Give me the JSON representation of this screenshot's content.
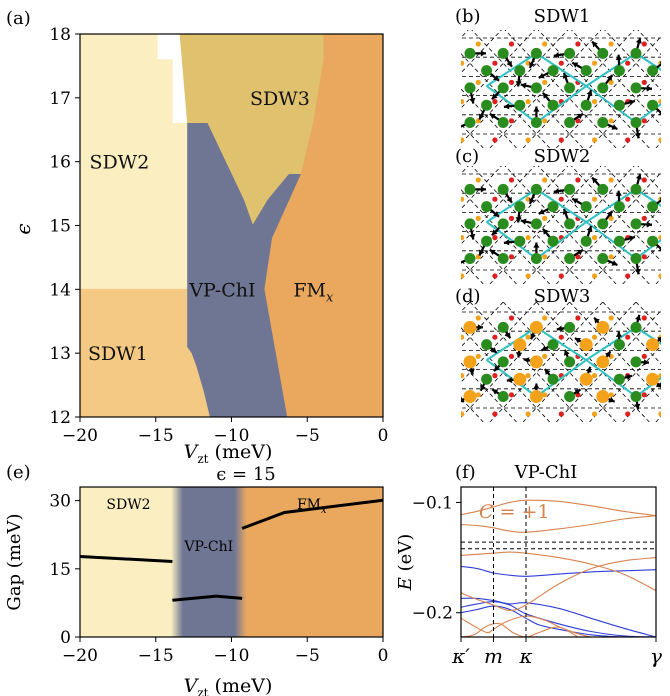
{
  "chart_data": [
    {
      "panel": "(a)",
      "type": "heatmap",
      "xlabel": "V_zt (meV)",
      "ylabel": "ϵ",
      "xlim": [
        -20,
        0
      ],
      "ylim": [
        12,
        18
      ],
      "xticks": [
        "−20",
        "−15",
        "−10",
        "−5",
        "0"
      ],
      "yticks": [
        "12",
        "13",
        "14",
        "15",
        "16",
        "17",
        "18"
      ],
      "regions": [
        {
          "name": "SDW2",
          "color": "#fbefc2",
          "polygon": [
            [
              -20,
              14
            ],
            [
              -20,
              18
            ],
            [
              -14.9,
              18
            ],
            [
              -14.9,
              17.6
            ],
            [
              -13.9,
              17.6
            ],
            [
              -13.9,
              16.6
            ],
            [
              -12.9,
              16.6
            ],
            [
              -12.9,
              14
            ],
            [
              -20,
              14
            ]
          ]
        },
        {
          "name": "SDW1",
          "color": "#f4c983",
          "polygon": [
            [
              -20,
              12
            ],
            [
              -20,
              14
            ],
            [
              -12.9,
              14
            ],
            [
              -12.9,
              13.1
            ],
            [
              -12.6,
              13.0
            ],
            [
              -12.3,
              12.8
            ],
            [
              -11.8,
              12.4
            ],
            [
              -11.4,
              12
            ],
            [
              -20,
              12
            ]
          ]
        },
        {
          "name": "SDW3",
          "color": "#e0c26e",
          "polygon": [
            [
              -13.4,
              18
            ],
            [
              -3.9,
              18
            ],
            [
              -3.9,
              17.6
            ],
            [
              -4.6,
              16.6
            ],
            [
              -5.4,
              15.8
            ],
            [
              -6.2,
              15.8
            ],
            [
              -7.6,
              15.4
            ],
            [
              -8.6,
              15.0
            ],
            [
              -9.2,
              15.4
            ],
            [
              -10.6,
              16.1
            ],
            [
              -11.6,
              16.6
            ],
            [
              -12.9,
              16.6
            ],
            [
              -13.4,
              18
            ]
          ]
        },
        {
          "name": "VP-ChI",
          "color": "#6f7693",
          "polygon": [
            [
              -12.9,
              16.6
            ],
            [
              -11.6,
              16.6
            ],
            [
              -10.6,
              16.1
            ],
            [
              -9.2,
              15.4
            ],
            [
              -8.6,
              15.0
            ],
            [
              -7.6,
              15.4
            ],
            [
              -6.2,
              15.8
            ],
            [
              -5.4,
              15.8
            ],
            [
              -7.3,
              14.8
            ],
            [
              -7.8,
              14.0
            ],
            [
              -6.3,
              12
            ],
            [
              -11.4,
              12
            ],
            [
              -11.8,
              12.4
            ],
            [
              -12.3,
              12.8
            ],
            [
              -12.6,
              13.0
            ],
            [
              -12.9,
              13.1
            ],
            [
              -12.9,
              16.6
            ]
          ]
        },
        {
          "name": "FM_x",
          "color": "#e9a85e",
          "polygon": [
            [
              -3.9,
              18
            ],
            [
              0,
              18
            ],
            [
              0,
              12
            ],
            [
              -6.3,
              12
            ],
            [
              -7.8,
              14.0
            ],
            [
              -7.3,
              14.8
            ],
            [
              -5.4,
              15.8
            ],
            [
              -4.6,
              16.6
            ],
            [
              -3.9,
              17.6
            ],
            [
              -3.9,
              18
            ]
          ]
        }
      ],
      "region_labels": [
        {
          "text": "SDW3",
          "x": -6.8,
          "y": 17.0
        },
        {
          "text": "SDW2",
          "x": -17.4,
          "y": 16.0
        },
        {
          "text": "VP-ChI",
          "x": -10.6,
          "y": 14.0
        },
        {
          "text": "FM",
          "sub": "x",
          "x": -4.6,
          "y": 14.0
        },
        {
          "text": "SDW1",
          "x": -17.5,
          "y": 13.0
        }
      ]
    },
    {
      "panel": "(e)",
      "type": "line",
      "title": "ϵ = 15",
      "xlabel": "V_zt (meV)",
      "ylabel": "Gap (meV)",
      "xlim": [
        -20,
        0
      ],
      "ylim": [
        0,
        33
      ],
      "xticks": [
        "−20",
        "−15",
        "−10",
        "−5",
        "0"
      ],
      "yticks": [
        "0",
        "15",
        "30"
      ],
      "bands": [
        {
          "name": "SDW2",
          "from": -20,
          "to": -13.6,
          "color": "#fbefc2"
        },
        {
          "name": "VP-ChI",
          "from": -13.6,
          "to": -9.4,
          "color": "#6f7693"
        },
        {
          "name": "FM",
          "sub": "x",
          "from": -9.4,
          "to": 0,
          "color": "#e9a85e"
        }
      ],
      "series": [
        {
          "x": [
            -20,
            -13.9
          ],
          "y": [
            17.7,
            16.6
          ]
        },
        {
          "x": [
            -13.9,
            -11.0,
            -9.3
          ],
          "y": [
            8.1,
            9.0,
            8.5
          ]
        },
        {
          "x": [
            -9.3,
            -6.5,
            0
          ],
          "y": [
            23.9,
            27.4,
            30.1
          ]
        }
      ]
    },
    {
      "panel": "(f)",
      "type": "line",
      "title": "VP-ChI",
      "ylabel": "E (eV)",
      "xlim": [
        0,
        3
      ],
      "ylim": [
        -0.222,
        -0.086
      ],
      "xticks": [
        "κ′",
        "m",
        "κ",
        "γ"
      ],
      "xtick_positions": [
        0,
        0.5,
        1,
        3
      ],
      "yticks": [
        "−0.2",
        "−0.1"
      ],
      "ytick_values": [
        -0.2,
        -0.1
      ],
      "annotation": "C = +1",
      "hlines": [
        -0.136,
        -0.142
      ],
      "vlines": [
        0.5,
        1
      ],
      "orange_bands": [
        {
          "x": [
            0,
            0.25,
            0.5,
            0.75,
            1,
            1.5,
            2,
            2.5,
            3
          ],
          "y": [
            -0.111,
            -0.108,
            -0.104,
            -0.1,
            -0.098,
            -0.099,
            -0.103,
            -0.108,
            -0.112
          ]
        },
        {
          "x": [
            0,
            0.25,
            0.5,
            0.75,
            1,
            1.5,
            2,
            2.5,
            3
          ],
          "y": [
            -0.12,
            -0.121,
            -0.123,
            -0.126,
            -0.127,
            -0.124,
            -0.12,
            -0.115,
            -0.112
          ]
        },
        {
          "x": [
            0,
            0.25,
            0.5,
            0.75,
            1,
            1.5,
            2,
            2.5,
            3
          ],
          "y": [
            -0.148,
            -0.147,
            -0.146,
            -0.145,
            -0.146,
            -0.15,
            -0.156,
            -0.165,
            -0.18
          ]
        },
        {
          "x": [
            0,
            0.25,
            0.5,
            0.75,
            1,
            1.5,
            2,
            2.5,
            3
          ],
          "y": [
            -0.182,
            -0.188,
            -0.193,
            -0.198,
            -0.193,
            -0.174,
            -0.16,
            -0.153,
            -0.15
          ]
        },
        {
          "x": [
            0,
            0.2,
            0.4,
            0.5,
            0.7,
            1,
            1.3,
            1.6,
            2,
            2.4,
            2.7,
            3
          ],
          "y": [
            -0.205,
            -0.212,
            -0.218,
            -0.215,
            -0.208,
            -0.203,
            -0.207,
            -0.215,
            -0.222,
            -0.222,
            -0.222,
            -0.222
          ]
        },
        {
          "x": [
            0,
            0.2,
            0.4,
            0.6,
            0.8,
            1,
            1.2,
            1.5,
            1.8
          ],
          "y": [
            -0.222,
            -0.22,
            -0.212,
            -0.21,
            -0.218,
            -0.222,
            -0.218,
            -0.213,
            -0.222
          ]
        }
      ],
      "blue_bands": [
        {
          "x": [
            0,
            0.25,
            0.5,
            0.75,
            1,
            1.5,
            2,
            2.5,
            3
          ],
          "y": [
            -0.158,
            -0.16,
            -0.164,
            -0.166,
            -0.167,
            -0.165,
            -0.163,
            -0.162,
            -0.161
          ]
        },
        {
          "x": [
            0,
            0.25,
            0.5,
            0.75,
            1,
            1.5,
            2,
            2.5,
            3
          ],
          "y": [
            -0.187,
            -0.187,
            -0.189,
            -0.192,
            -0.191,
            -0.196,
            -0.205,
            -0.214,
            -0.222
          ]
        },
        {
          "x": [
            0,
            0.25,
            0.5,
            0.75,
            1,
            1.5,
            2,
            2.5,
            3
          ],
          "y": [
            -0.195,
            -0.192,
            -0.19,
            -0.193,
            -0.201,
            -0.21,
            -0.217,
            -0.221,
            -0.222
          ]
        },
        {
          "x": [
            0,
            0.25,
            0.5,
            0.75,
            1,
            1.2,
            1.5,
            2,
            2.5,
            3
          ],
          "y": [
            -0.2,
            -0.197,
            -0.194,
            -0.197,
            -0.205,
            -0.211,
            -0.215,
            -0.22,
            -0.222,
            -0.222
          ]
        }
      ]
    },
    {
      "panel": "(b)",
      "title": "SDW1",
      "type": "diagram"
    },
    {
      "panel": "(c)",
      "title": "SDW2",
      "type": "diagram"
    },
    {
      "panel": "(d)",
      "title": "SDW3",
      "type": "diagram"
    }
  ],
  "colors": {
    "green_site": "#2a8c1e",
    "orange_site": "#f4a21a",
    "red_site": "#e0201e",
    "cyan_link": "#2ec2c2",
    "orange_band": "#d8834e",
    "blue_band": "#2f3fd6"
  }
}
